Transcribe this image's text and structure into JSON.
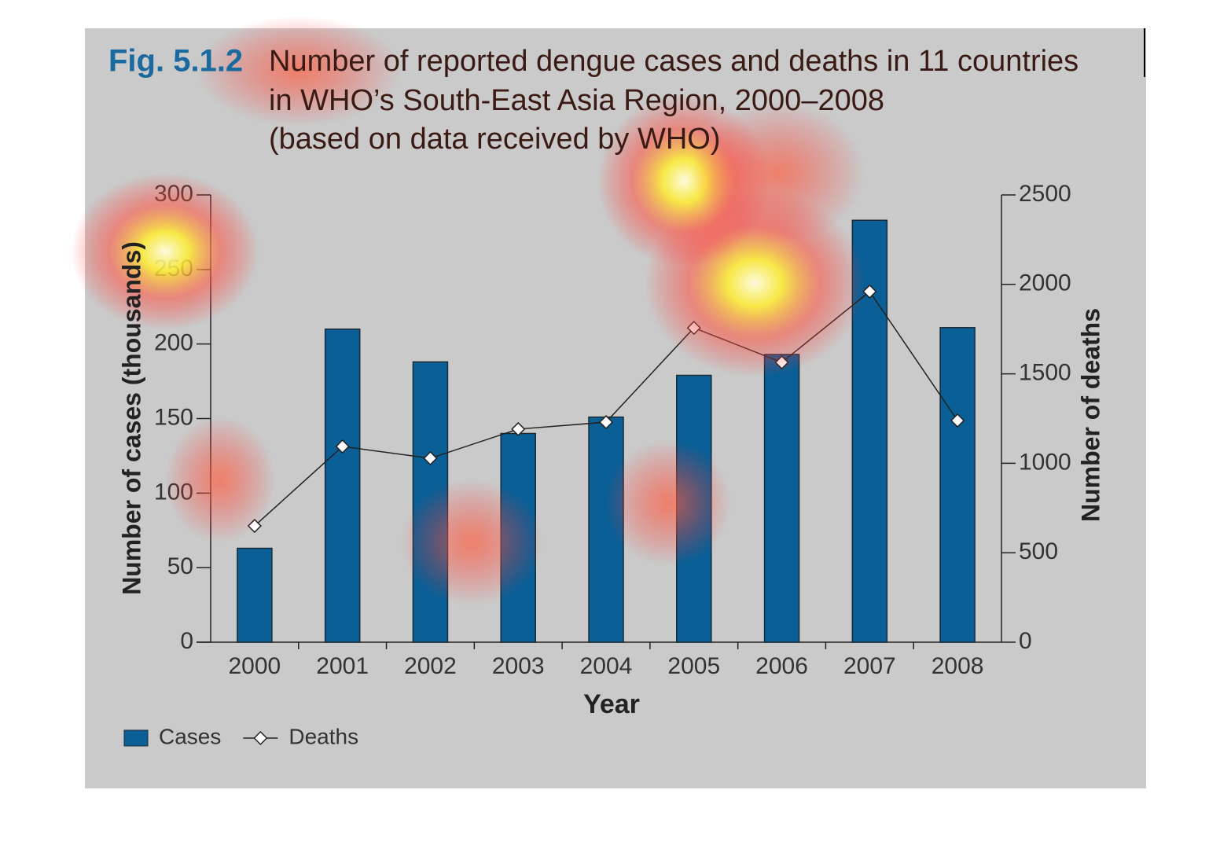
{
  "chart_data": {
    "type": "bar_line",
    "figure_label": "Fig. 5.1.2",
    "title": [
      "Number of reported dengue cases and deaths in 11 countries",
      "in WHO’s South-East Asia Region, 2000–2008",
      "(based on data received by WHO)"
    ],
    "x_label": "Year",
    "y_label": "Number of cases (thousands)",
    "y2_label": "Number of deaths",
    "categories": [
      "2000",
      "2001",
      "2002",
      "2003",
      "2004",
      "2005",
      "2006",
      "2007",
      "2008"
    ],
    "series": [
      {
        "name": "Cases",
        "type": "bar",
        "color": "#0a5f96",
        "values": [
          63,
          210,
          188,
          140,
          151,
          179,
          193,
          283,
          211
        ]
      },
      {
        "name": "Deaths",
        "type": "line",
        "axis": "y2",
        "color": "#ffffff",
        "values": [
          650,
          1094,
          1028,
          1191,
          1230,
          1757,
          1564,
          1960,
          1239
        ]
      }
    ],
    "ylim": [
      0,
      300
    ],
    "yticks": [
      0,
      50,
      100,
      150,
      200,
      250,
      300
    ],
    "y2lim": [
      0,
      2500
    ],
    "y2ticks": [
      0,
      500,
      1000,
      1500,
      2000,
      2500
    ],
    "legend": "bottom-left"
  }
}
